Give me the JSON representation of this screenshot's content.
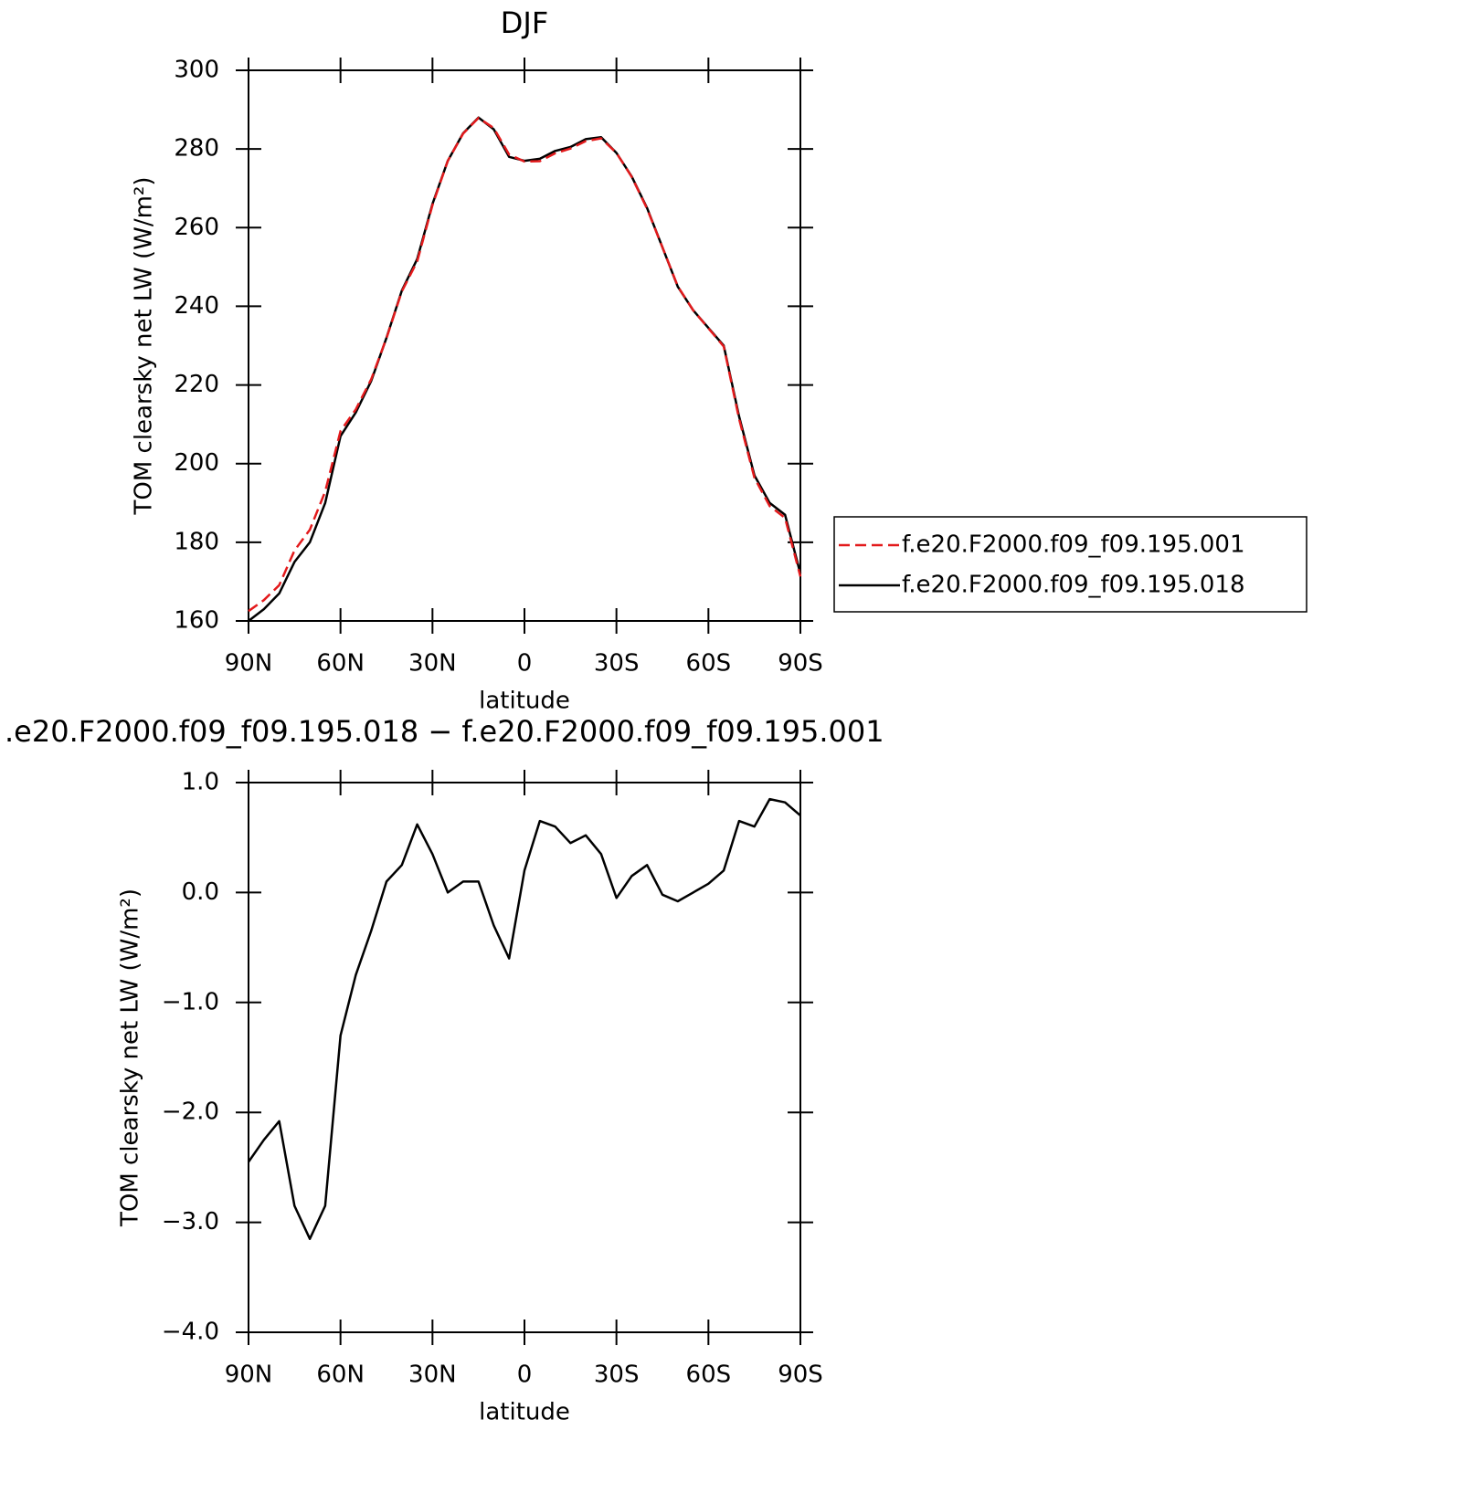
{
  "chart_data": [
    {
      "type": "line",
      "title": "DJF",
      "x_label": "latitude",
      "y_label": "TOM clearsky net LW (W/m²)",
      "x": [
        90,
        85,
        80,
        75,
        70,
        65,
        60,
        55,
        50,
        45,
        40,
        35,
        30,
        25,
        20,
        15,
        10,
        5,
        0,
        -5,
        -10,
        -15,
        -20,
        -25,
        -30,
        -35,
        -40,
        -45,
        -50,
        -55,
        -60,
        -65,
        -70,
        -75,
        -80,
        -85,
        -90
      ],
      "xlim": [
        90,
        -90
      ],
      "xticks": [
        {
          "value": 90,
          "label": "90N"
        },
        {
          "value": 60,
          "label": "60N"
        },
        {
          "value": 30,
          "label": "30N"
        },
        0,
        {
          "value": -30,
          "label": "30S"
        },
        {
          "value": -60,
          "label": "60S"
        },
        {
          "value": -90,
          "label": "90S"
        }
      ],
      "ylim": [
        160,
        300
      ],
      "yticks": [
        160,
        180,
        200,
        220,
        240,
        260,
        280,
        300
      ],
      "series": [
        {
          "name": "f.e20.F2000.f09_f09.195.001",
          "color": "#e31a1c",
          "linestyle": "dashed",
          "values": [
            162.5,
            165.3,
            169.1,
            177.9,
            183.2,
            192.9,
            208.3,
            213.8,
            221.4,
            231.9,
            243.8,
            251.4,
            265.7,
            277,
            283.9,
            287.9,
            285.3,
            278.6,
            276.8,
            276.9,
            278.9,
            280.1,
            282,
            282.7,
            279,
            272.9,
            264.8,
            255,
            245.1,
            239,
            234.4,
            229.8,
            211.4,
            196.4,
            189.2,
            186.2,
            171.3
          ]
        },
        {
          "name": "f.e20.F2000.f09_f09.195.018",
          "color": "#000000",
          "linestyle": "solid",
          "values": [
            160,
            163,
            167,
            175,
            180,
            190,
            207,
            213,
            221,
            232,
            244,
            252,
            266,
            277,
            284,
            288,
            285,
            278,
            277,
            277.5,
            279.5,
            280.5,
            282.5,
            283,
            279,
            273,
            265,
            255,
            245,
            239,
            234.5,
            230,
            212,
            197,
            190,
            187,
            172
          ]
        }
      ],
      "legend": "right"
    },
    {
      "type": "line",
      "title": ".e20.F2000.f09_f09.195.018 − f.e20.F2000.f09_f09.195.001",
      "x_label": "latitude",
      "y_label": "TOM clearsky net LW (W/m²)",
      "x": [
        90,
        85,
        80,
        75,
        70,
        65,
        60,
        55,
        50,
        45,
        40,
        35,
        30,
        25,
        20,
        15,
        10,
        5,
        0,
        -5,
        -10,
        -15,
        -20,
        -25,
        -30,
        -35,
        -40,
        -45,
        -50,
        -55,
        -60,
        -65,
        -70,
        -75,
        -80,
        -85,
        -90
      ],
      "xlim": [
        90,
        -90
      ],
      "xticks": [
        {
          "value": 90,
          "label": "90N"
        },
        {
          "value": 60,
          "label": "60N"
        },
        {
          "value": 30,
          "label": "30N"
        },
        0,
        {
          "value": -30,
          "label": "30S"
        },
        {
          "value": -60,
          "label": "60S"
        },
        {
          "value": -90,
          "label": "90S"
        }
      ],
      "ylim": [
        -4,
        1
      ],
      "yticks": [
        {
          "value": -4,
          "label": "−4.0"
        },
        {
          "value": -3,
          "label": "−3.0"
        },
        {
          "value": -2,
          "label": "−2.0"
        },
        {
          "value": -1,
          "label": "−1.0"
        },
        {
          "value": 0,
          "label": "0.0"
        },
        {
          "value": 1,
          "label": "1.0"
        }
      ],
      "color": "#000000",
      "values": [
        -2.45,
        -2.25,
        -2.08,
        -2.85,
        -3.15,
        -2.85,
        -1.3,
        -0.75,
        -0.35,
        0.1,
        0.25,
        0.62,
        0.35,
        0.0,
        0.1,
        0.1,
        -0.3,
        -0.6,
        0.2,
        0.65,
        0.6,
        0.45,
        0.52,
        0.35,
        -0.05,
        0.15,
        0.25,
        -0.02,
        -0.08,
        0.0,
        0.08,
        0.2,
        0.65,
        0.6,
        0.85,
        0.82,
        0.7
      ]
    }
  ]
}
